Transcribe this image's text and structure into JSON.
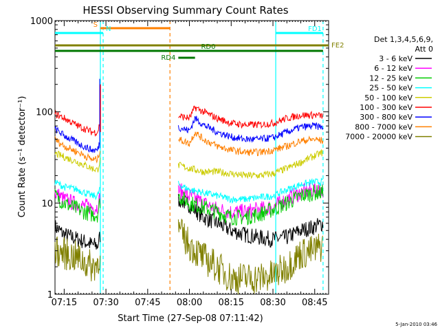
{
  "chart_data": {
    "type": "line",
    "title": "HESSI Observing Summary Count Rates",
    "xlabel": "Start Time (27-Sep-08 07:11:42)",
    "ylabel": "Count Rate (s⁻¹ detector⁻¹)",
    "y_scale": "log",
    "ylim": [
      1,
      1000
    ],
    "xlim": [
      "07:11:42",
      "08:50:00"
    ],
    "x_ticks": [
      "07:15",
      "07:30",
      "07:45",
      "08:00",
      "08:15",
      "08:30",
      "08:45"
    ],
    "y_ticks": [
      "1",
      "10",
      "100",
      "1000"
    ],
    "grid": false,
    "legend_position": "right",
    "legend_header": [
      "Det 1,3,4,5,6,9,",
      "Att 0"
    ],
    "date_stamp": "5-Jan-2010 03:46",
    "data_gap": [
      "07:28:30",
      "07:55:30"
    ],
    "series": [
      {
        "name": "3 - 6 keV",
        "color": "#000000",
        "segments": [
          {
            "x": [
              "07:11:42",
              "07:15",
              "07:20",
              "07:25",
              "07:27",
              "07:28"
            ],
            "y": [
              5.5,
              4.5,
              4.0,
              3.5,
              3.4,
              4.5
            ]
          },
          {
            "x": [
              "07:56",
              "08:00",
              "08:05",
              "08:10",
              "08:15",
              "08:20",
              "08:25",
              "08:30",
              "08:35",
              "08:40",
              "08:45",
              "08:48"
            ],
            "y": [
              11,
              9.5,
              7,
              6,
              5,
              4.5,
              4.2,
              4.0,
              4.2,
              5.0,
              5.5,
              6.0
            ]
          }
        ]
      },
      {
        "name": "6 - 12 keV",
        "color": "#ff00ff",
        "segments": [
          {
            "x": [
              "07:11:42",
              "07:15",
              "07:20",
              "07:25",
              "07:27",
              "07:28"
            ],
            "y": [
              13,
              11,
              9.5,
              9,
              9,
              12
            ]
          },
          {
            "x": [
              "07:56",
              "08:00",
              "08:05",
              "08:10",
              "08:15",
              "08:20",
              "08:25",
              "08:30",
              "08:35",
              "08:40",
              "08:45",
              "08:48"
            ],
            "y": [
              14,
              12,
              10,
              8.5,
              8,
              8,
              8.5,
              9,
              11,
              13,
              14,
              14
            ]
          }
        ]
      },
      {
        "name": "12 - 25 keV",
        "color": "#00cc00",
        "segments": [
          {
            "x": [
              "07:11:42",
              "07:15",
              "07:20",
              "07:25",
              "07:27",
              "07:28"
            ],
            "y": [
              12,
              10,
              8.5,
              7.5,
              7.5,
              11
            ]
          },
          {
            "x": [
              "07:56",
              "08:00",
              "08:05",
              "08:10",
              "08:15",
              "08:20",
              "08:25",
              "08:30",
              "08:35",
              "08:40",
              "08:45",
              "08:48"
            ],
            "y": [
              12,
              10,
              9,
              8,
              7,
              7,
              7.5,
              8.5,
              10,
              12,
              13,
              13
            ]
          }
        ]
      },
      {
        "name": "25 - 50 keV",
        "color": "#00ffff",
        "segments": [
          {
            "x": [
              "07:11:42",
              "07:15",
              "07:20",
              "07:25",
              "07:27",
              "07:28"
            ],
            "y": [
              17,
              15,
              14,
              12,
              12,
              15
            ]
          },
          {
            "x": [
              "07:56",
              "08:00",
              "08:05",
              "08:10",
              "08:15",
              "08:20",
              "08:25",
              "08:30",
              "08:35",
              "08:40",
              "08:45",
              "08:48"
            ],
            "y": [
              16,
              14,
              13,
              12,
              11,
              11,
              11.5,
              12,
              14,
              16,
              17,
              17
            ]
          }
        ]
      },
      {
        "name": "50 - 100 keV",
        "color": "#cccc00",
        "segments": [
          {
            "x": [
              "07:11:42",
              "07:15",
              "07:20",
              "07:25",
              "07:27",
              "07:28"
            ],
            "y": [
              35,
              32,
              28,
              24,
              23,
              30
            ]
          },
          {
            "x": [
              "07:56",
              "08:00",
              "08:05",
              "08:10",
              "08:15",
              "08:20",
              "08:25",
              "08:30",
              "08:35",
              "08:40",
              "08:45",
              "08:48"
            ],
            "y": [
              26,
              24,
              22,
              22,
              21,
              20,
              20,
              21,
              24,
              28,
              33,
              36
            ]
          }
        ]
      },
      {
        "name": "100 - 300 keV",
        "color": "#ff0000",
        "segments": [
          {
            "x": [
              "07:11:42",
              "07:15",
              "07:20",
              "07:25",
              "07:27",
              "07:28"
            ],
            "y": [
              95,
              85,
              70,
              60,
              60,
              80
            ]
          },
          {
            "x": [
              "07:56",
              "08:00",
              "08:02",
              "08:05",
              "08:10",
              "08:15",
              "08:20",
              "08:25",
              "08:30",
              "08:35",
              "08:40",
              "08:45",
              "08:48"
            ],
            "y": [
              90,
              85,
              112,
              100,
              85,
              75,
              72,
              72,
              75,
              85,
              92,
              92,
              90
            ]
          }
        ]
      },
      {
        "name": "300 - 800 keV",
        "color": "#0000ff",
        "segments": [
          {
            "x": [
              "07:11:42",
              "07:15",
              "07:20",
              "07:25",
              "07:27",
              "07:28"
            ],
            "y": [
              65,
              55,
              45,
              38,
              38,
              50
            ]
          },
          {
            "x": [
              "07:56",
              "08:00",
              "08:02",
              "08:05",
              "08:10",
              "08:15",
              "08:20",
              "08:25",
              "08:30",
              "08:35",
              "08:40",
              "08:45",
              "08:48"
            ],
            "y": [
              68,
              62,
              85,
              72,
              60,
              53,
              50,
              50,
              52,
              60,
              68,
              70,
              68
            ]
          }
        ]
      },
      {
        "name": "800 - 7000 keV",
        "color": "#ff8000",
        "segments": [
          {
            "x": [
              "07:11:42",
              "07:15",
              "07:20",
              "07:25",
              "07:27",
              "07:28"
            ],
            "y": [
              50,
              42,
              36,
              30,
              30,
              40
            ]
          },
          {
            "x": [
              "07:56",
              "08:00",
              "08:02",
              "08:05",
              "08:10",
              "08:15",
              "08:20",
              "08:25",
              "08:30",
              "08:35",
              "08:40",
              "08:45",
              "08:48"
            ],
            "y": [
              50,
              45,
              60,
              50,
              42,
              38,
              36,
              36,
              38,
              42,
              48,
              50,
              48
            ]
          }
        ]
      },
      {
        "name": "7000 - 20000 keV",
        "color": "#808000",
        "segments": [
          {
            "x": [
              "07:11:42",
              "07:15",
              "07:20",
              "07:25",
              "07:27",
              "07:28"
            ],
            "y": [
              3.0,
              2.8,
              2.5,
              2.0,
              2.2,
              3.0
            ]
          },
          {
            "x": [
              "07:56",
              "08:00",
              "08:05",
              "08:10",
              "08:15",
              "08:20",
              "08:25",
              "08:30",
              "08:35",
              "08:40",
              "08:45",
              "08:48"
            ],
            "y": [
              5.0,
              3.5,
              2.5,
              2.0,
              1.5,
              1.5,
              1.5,
              1.6,
              2.0,
              2.8,
              3.0,
              3.5
            ]
          }
        ]
      }
    ],
    "flare_spike": {
      "x": "07:28",
      "y": [
        200,
        230
      ]
    },
    "state_bars": [
      {
        "label": "S",
        "start": "07:28:00",
        "end": "07:53:00",
        "color": "#ff8000",
        "label_at": "start"
      },
      {
        "label": "N",
        "start": "07:11:42",
        "end": "07:29:00",
        "color": "#00ffff",
        "label_at": "end"
      },
      {
        "label": "FD1",
        "start": "08:31:00",
        "end": "08:48:00",
        "color": "#00ffff",
        "label_at": "end"
      },
      {
        "label": "FE2",
        "start": "07:11:42",
        "end": "08:50:00",
        "color": "#808000",
        "label_at": "end"
      },
      {
        "label": "RD0",
        "start": "07:11:42",
        "end": "08:48:00",
        "color": "#007700",
        "label_at": "mid"
      },
      {
        "label": "RD4",
        "start": "07:56:00",
        "end": "08:02:00",
        "color": "#007700",
        "label_at": "start"
      }
    ],
    "vertical_markers": [
      {
        "x": "07:28:00",
        "color": "#00ffff",
        "style": "solid"
      },
      {
        "x": "07:29:00",
        "color": "#00ffff",
        "style": "dashed"
      },
      {
        "x": "07:53:00",
        "color": "#ff8000",
        "style": "dashed"
      },
      {
        "x": "08:31:00",
        "color": "#00ffff",
        "style": "solid"
      },
      {
        "x": "08:48:00",
        "color": "#00ffff",
        "style": "dashed"
      }
    ]
  }
}
